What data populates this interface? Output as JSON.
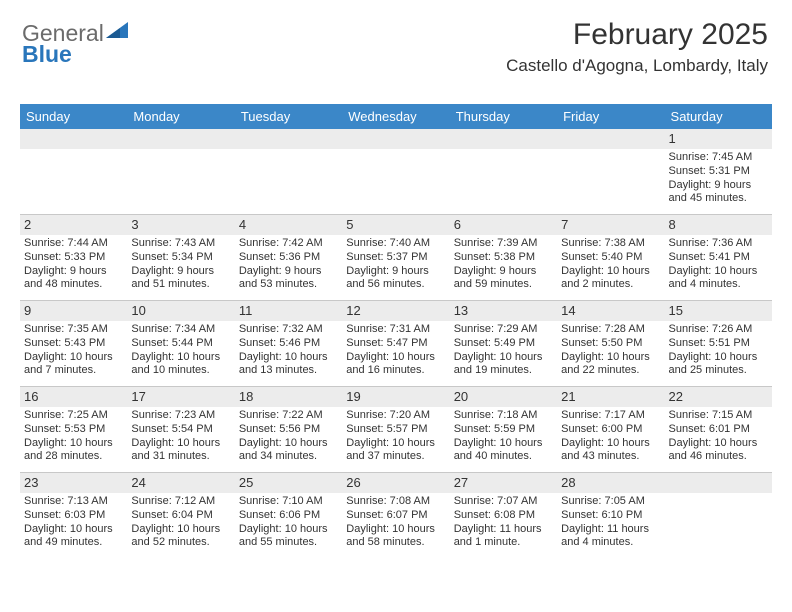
{
  "logo": {
    "line1": "General",
    "line2": "Blue"
  },
  "title": "February 2025",
  "location": "Castello d'Agogna, Lombardy, Italy",
  "colors": {
    "header_bg": "#3b87c8",
    "header_text": "#ffffff",
    "daynum_bg": "#ececec",
    "border": "#c8c8c8",
    "text": "#333333",
    "logo_blue": "#2976bb"
  },
  "day_names": [
    "Sunday",
    "Monday",
    "Tuesday",
    "Wednesday",
    "Thursday",
    "Friday",
    "Saturday"
  ],
  "weeks": [
    {
      "nums": [
        "",
        "",
        "",
        "",
        "",
        "",
        "1"
      ],
      "cells": [
        null,
        null,
        null,
        null,
        null,
        null,
        {
          "sunrise": "Sunrise: 7:45 AM",
          "sunset": "Sunset: 5:31 PM",
          "day1": "Daylight: 9 hours",
          "day2": "and 45 minutes."
        }
      ]
    },
    {
      "nums": [
        "2",
        "3",
        "4",
        "5",
        "6",
        "7",
        "8"
      ],
      "cells": [
        {
          "sunrise": "Sunrise: 7:44 AM",
          "sunset": "Sunset: 5:33 PM",
          "day1": "Daylight: 9 hours",
          "day2": "and 48 minutes."
        },
        {
          "sunrise": "Sunrise: 7:43 AM",
          "sunset": "Sunset: 5:34 PM",
          "day1": "Daylight: 9 hours",
          "day2": "and 51 minutes."
        },
        {
          "sunrise": "Sunrise: 7:42 AM",
          "sunset": "Sunset: 5:36 PM",
          "day1": "Daylight: 9 hours",
          "day2": "and 53 minutes."
        },
        {
          "sunrise": "Sunrise: 7:40 AM",
          "sunset": "Sunset: 5:37 PM",
          "day1": "Daylight: 9 hours",
          "day2": "and 56 minutes."
        },
        {
          "sunrise": "Sunrise: 7:39 AM",
          "sunset": "Sunset: 5:38 PM",
          "day1": "Daylight: 9 hours",
          "day2": "and 59 minutes."
        },
        {
          "sunrise": "Sunrise: 7:38 AM",
          "sunset": "Sunset: 5:40 PM",
          "day1": "Daylight: 10 hours",
          "day2": "and 2 minutes."
        },
        {
          "sunrise": "Sunrise: 7:36 AM",
          "sunset": "Sunset: 5:41 PM",
          "day1": "Daylight: 10 hours",
          "day2": "and 4 minutes."
        }
      ]
    },
    {
      "nums": [
        "9",
        "10",
        "11",
        "12",
        "13",
        "14",
        "15"
      ],
      "cells": [
        {
          "sunrise": "Sunrise: 7:35 AM",
          "sunset": "Sunset: 5:43 PM",
          "day1": "Daylight: 10 hours",
          "day2": "and 7 minutes."
        },
        {
          "sunrise": "Sunrise: 7:34 AM",
          "sunset": "Sunset: 5:44 PM",
          "day1": "Daylight: 10 hours",
          "day2": "and 10 minutes."
        },
        {
          "sunrise": "Sunrise: 7:32 AM",
          "sunset": "Sunset: 5:46 PM",
          "day1": "Daylight: 10 hours",
          "day2": "and 13 minutes."
        },
        {
          "sunrise": "Sunrise: 7:31 AM",
          "sunset": "Sunset: 5:47 PM",
          "day1": "Daylight: 10 hours",
          "day2": "and 16 minutes."
        },
        {
          "sunrise": "Sunrise: 7:29 AM",
          "sunset": "Sunset: 5:49 PM",
          "day1": "Daylight: 10 hours",
          "day2": "and 19 minutes."
        },
        {
          "sunrise": "Sunrise: 7:28 AM",
          "sunset": "Sunset: 5:50 PM",
          "day1": "Daylight: 10 hours",
          "day2": "and 22 minutes."
        },
        {
          "sunrise": "Sunrise: 7:26 AM",
          "sunset": "Sunset: 5:51 PM",
          "day1": "Daylight: 10 hours",
          "day2": "and 25 minutes."
        }
      ]
    },
    {
      "nums": [
        "16",
        "17",
        "18",
        "19",
        "20",
        "21",
        "22"
      ],
      "cells": [
        {
          "sunrise": "Sunrise: 7:25 AM",
          "sunset": "Sunset: 5:53 PM",
          "day1": "Daylight: 10 hours",
          "day2": "and 28 minutes."
        },
        {
          "sunrise": "Sunrise: 7:23 AM",
          "sunset": "Sunset: 5:54 PM",
          "day1": "Daylight: 10 hours",
          "day2": "and 31 minutes."
        },
        {
          "sunrise": "Sunrise: 7:22 AM",
          "sunset": "Sunset: 5:56 PM",
          "day1": "Daylight: 10 hours",
          "day2": "and 34 minutes."
        },
        {
          "sunrise": "Sunrise: 7:20 AM",
          "sunset": "Sunset: 5:57 PM",
          "day1": "Daylight: 10 hours",
          "day2": "and 37 minutes."
        },
        {
          "sunrise": "Sunrise: 7:18 AM",
          "sunset": "Sunset: 5:59 PM",
          "day1": "Daylight: 10 hours",
          "day2": "and 40 minutes."
        },
        {
          "sunrise": "Sunrise: 7:17 AM",
          "sunset": "Sunset: 6:00 PM",
          "day1": "Daylight: 10 hours",
          "day2": "and 43 minutes."
        },
        {
          "sunrise": "Sunrise: 7:15 AM",
          "sunset": "Sunset: 6:01 PM",
          "day1": "Daylight: 10 hours",
          "day2": "and 46 minutes."
        }
      ]
    },
    {
      "nums": [
        "23",
        "24",
        "25",
        "26",
        "27",
        "28",
        ""
      ],
      "cells": [
        {
          "sunrise": "Sunrise: 7:13 AM",
          "sunset": "Sunset: 6:03 PM",
          "day1": "Daylight: 10 hours",
          "day2": "and 49 minutes."
        },
        {
          "sunrise": "Sunrise: 7:12 AM",
          "sunset": "Sunset: 6:04 PM",
          "day1": "Daylight: 10 hours",
          "day2": "and 52 minutes."
        },
        {
          "sunrise": "Sunrise: 7:10 AM",
          "sunset": "Sunset: 6:06 PM",
          "day1": "Daylight: 10 hours",
          "day2": "and 55 minutes."
        },
        {
          "sunrise": "Sunrise: 7:08 AM",
          "sunset": "Sunset: 6:07 PM",
          "day1": "Daylight: 10 hours",
          "day2": "and 58 minutes."
        },
        {
          "sunrise": "Sunrise: 7:07 AM",
          "sunset": "Sunset: 6:08 PM",
          "day1": "Daylight: 11 hours",
          "day2": "and 1 minute."
        },
        {
          "sunrise": "Sunrise: 7:05 AM",
          "sunset": "Sunset: 6:10 PM",
          "day1": "Daylight: 11 hours",
          "day2": "and 4 minutes."
        },
        null
      ]
    }
  ]
}
